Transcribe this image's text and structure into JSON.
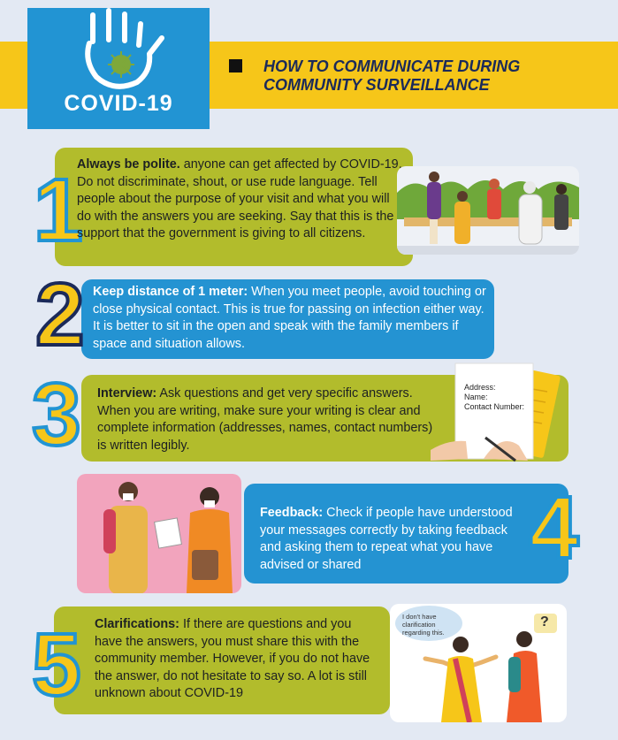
{
  "header": {
    "badge_label": "COVID-19",
    "title_line1": "HOW TO COMMUNICATE DURING",
    "title_line2": "COMMUNITY SURVEILLANCE"
  },
  "tips": [
    {
      "number": "1",
      "heading": "Always be polite.",
      "body": " anyone can get affected by COVID-19. Do not discriminate, shout, or use rude language. Tell people about the purpose of your visit and what you will do with the answers you are seeking. Say that this is the support that the government is giving to all citizens."
    },
    {
      "number": "2",
      "heading": "Keep distance of 1 meter:",
      "body": " When you meet people, avoid touching or close physical contact. This is true for passing on infection either way. It is better to sit in the open and speak with the family members if space and situation allows."
    },
    {
      "number": "3",
      "heading": "Interview:",
      "body": " Ask questions and get very specific answers. When you are writing, make sure your writing is clear and complete information (addresses, names, contact numbers) is written legibly."
    },
    {
      "number": "4",
      "heading": "Feedback:",
      "body": " Check if people have understood your messages correctly by taking feedback and asking them to repeat what you have advised or shared"
    },
    {
      "number": "5",
      "heading": "Clarifications:",
      "body": " If there are questions and you have the answers, you must share this with the community member. However, if you do not have the answer, do not hesitate to say so. A lot is still unknown about COVID-19"
    }
  ],
  "form_fields": {
    "address": "Address:",
    "name": "Name:",
    "contact": "Contact Number:"
  },
  "speech": {
    "clarify": "I don't have clarification regarding this.",
    "question": "?"
  },
  "colors": {
    "green": "#b2bc2c",
    "blue": "#2493d2",
    "yellow": "#f6c619",
    "navy": "#1b2a5a"
  }
}
